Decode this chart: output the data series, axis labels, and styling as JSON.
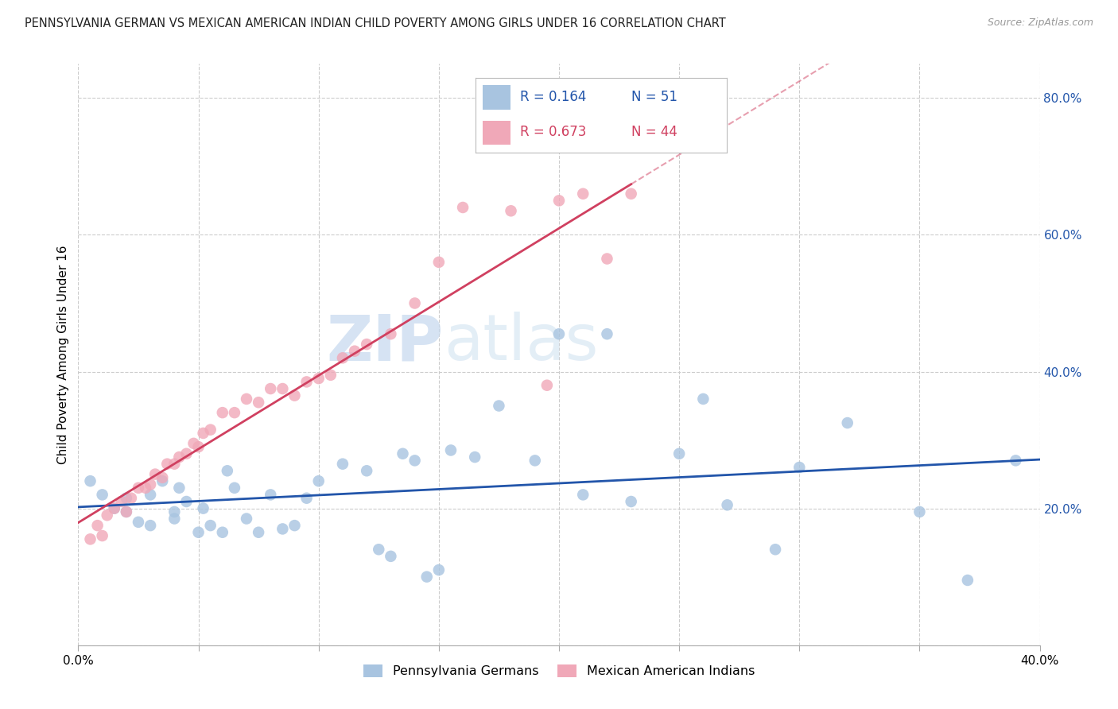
{
  "title": "PENNSYLVANIA GERMAN VS MEXICAN AMERICAN INDIAN CHILD POVERTY AMONG GIRLS UNDER 16 CORRELATION CHART",
  "source": "Source: ZipAtlas.com",
  "ylabel": "Child Poverty Among Girls Under 16",
  "xlim": [
    0.0,
    0.4
  ],
  "ylim": [
    0.0,
    0.85
  ],
  "xticks": [
    0.0,
    0.05,
    0.1,
    0.15,
    0.2,
    0.25,
    0.3,
    0.35,
    0.4
  ],
  "yticks": [
    0.0,
    0.2,
    0.4,
    0.6,
    0.8
  ],
  "blue_color": "#a8c4e0",
  "pink_color": "#f0a8b8",
  "blue_line_color": "#2255aa",
  "pink_line_color": "#d04060",
  "legend_R_blue": "0.164",
  "legend_N_blue": "51",
  "legend_R_pink": "0.673",
  "legend_N_pink": "44",
  "legend_label_blue": "Pennsylvania Germans",
  "legend_label_pink": "Mexican American Indians",
  "watermark_zip": "ZIP",
  "watermark_atlas": "atlas",
  "title_fontsize": 10.5,
  "axis_label_fontsize": 11,
  "tick_fontsize": 11,
  "blue_scatter_x": [
    0.005,
    0.01,
    0.015,
    0.02,
    0.02,
    0.025,
    0.03,
    0.03,
    0.035,
    0.04,
    0.04,
    0.042,
    0.045,
    0.05,
    0.052,
    0.055,
    0.06,
    0.062,
    0.065,
    0.07,
    0.075,
    0.08,
    0.085,
    0.09,
    0.095,
    0.1,
    0.11,
    0.12,
    0.125,
    0.13,
    0.135,
    0.14,
    0.145,
    0.15,
    0.155,
    0.165,
    0.175,
    0.19,
    0.2,
    0.21,
    0.22,
    0.23,
    0.25,
    0.26,
    0.27,
    0.29,
    0.3,
    0.32,
    0.35,
    0.37,
    0.39
  ],
  "blue_scatter_y": [
    0.24,
    0.22,
    0.2,
    0.195,
    0.215,
    0.18,
    0.175,
    0.22,
    0.24,
    0.185,
    0.195,
    0.23,
    0.21,
    0.165,
    0.2,
    0.175,
    0.165,
    0.255,
    0.23,
    0.185,
    0.165,
    0.22,
    0.17,
    0.175,
    0.215,
    0.24,
    0.265,
    0.255,
    0.14,
    0.13,
    0.28,
    0.27,
    0.1,
    0.11,
    0.285,
    0.275,
    0.35,
    0.27,
    0.455,
    0.22,
    0.455,
    0.21,
    0.28,
    0.36,
    0.205,
    0.14,
    0.26,
    0.325,
    0.195,
    0.095,
    0.27
  ],
  "pink_scatter_x": [
    0.005,
    0.008,
    0.01,
    0.012,
    0.015,
    0.018,
    0.02,
    0.022,
    0.025,
    0.028,
    0.03,
    0.032,
    0.035,
    0.037,
    0.04,
    0.042,
    0.045,
    0.048,
    0.05,
    0.052,
    0.055,
    0.06,
    0.065,
    0.07,
    0.075,
    0.08,
    0.085,
    0.09,
    0.095,
    0.1,
    0.105,
    0.11,
    0.115,
    0.12,
    0.13,
    0.14,
    0.15,
    0.16,
    0.18,
    0.195,
    0.2,
    0.21,
    0.22,
    0.23
  ],
  "pink_scatter_y": [
    0.155,
    0.175,
    0.16,
    0.19,
    0.2,
    0.21,
    0.195,
    0.215,
    0.23,
    0.23,
    0.235,
    0.25,
    0.245,
    0.265,
    0.265,
    0.275,
    0.28,
    0.295,
    0.29,
    0.31,
    0.315,
    0.34,
    0.34,
    0.36,
    0.355,
    0.375,
    0.375,
    0.365,
    0.385,
    0.39,
    0.395,
    0.42,
    0.43,
    0.44,
    0.455,
    0.5,
    0.56,
    0.64,
    0.635,
    0.38,
    0.65,
    0.66,
    0.565,
    0.66
  ]
}
